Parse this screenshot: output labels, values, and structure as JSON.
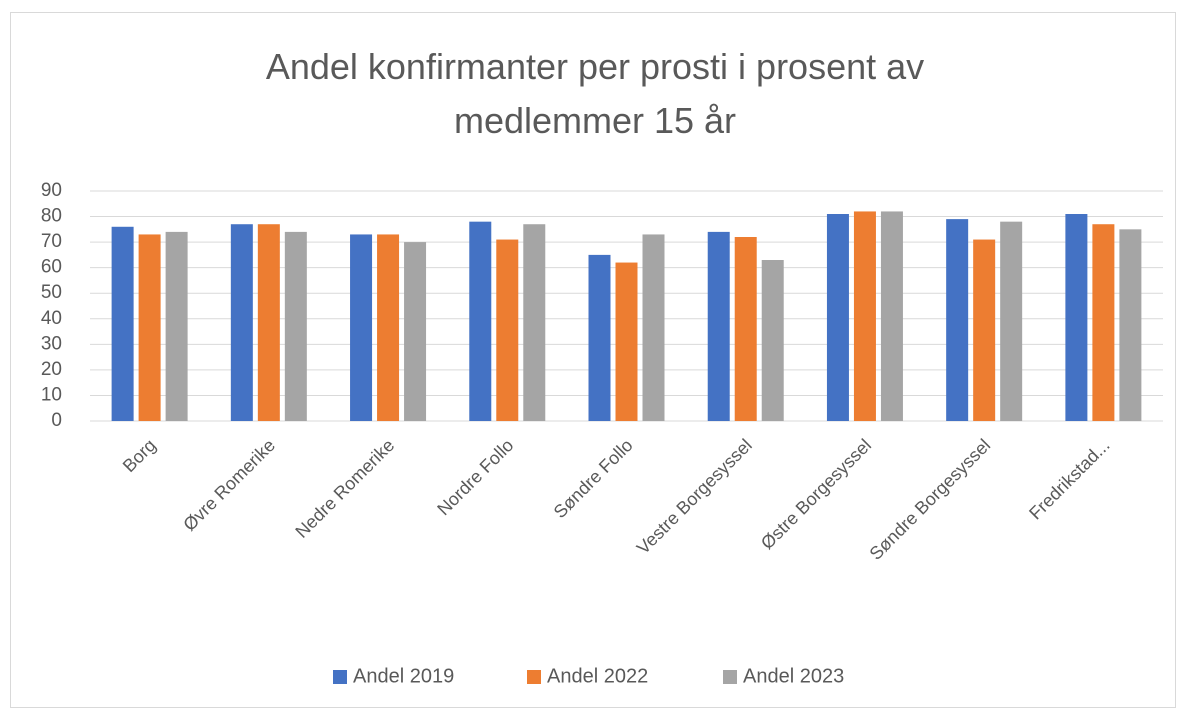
{
  "chart_data": {
    "type": "bar",
    "title": "Andel konfirmanter per prosti i prosent av medlemmer 15 år",
    "categories": [
      "Borg",
      "Øvre Romerike",
      "Nedre Romerike",
      "Nordre Follo",
      "Søndre Follo",
      "Vestre Borgesyssel",
      "Østre Borgesyssel",
      "Søndre Borgesyssel",
      "Fredrikstad..."
    ],
    "series": [
      {
        "name": "Andel 2019",
        "color": "#4472c4",
        "values": [
          76,
          77,
          73,
          78,
          65,
          74,
          81,
          79,
          81
        ]
      },
      {
        "name": "Andel 2022",
        "color": "#ed7d31",
        "values": [
          73,
          77,
          73,
          71,
          62,
          72,
          82,
          71,
          77
        ]
      },
      {
        "name": "Andel 2023",
        "color": "#a5a5a5",
        "values": [
          74,
          74,
          70,
          77,
          73,
          63,
          82,
          78,
          75
        ]
      }
    ],
    "ylim": [
      0,
      90
    ],
    "yticks": [
      0,
      10,
      20,
      30,
      40,
      50,
      60,
      70,
      80,
      90
    ],
    "grid": true,
    "legend": "bottom"
  }
}
